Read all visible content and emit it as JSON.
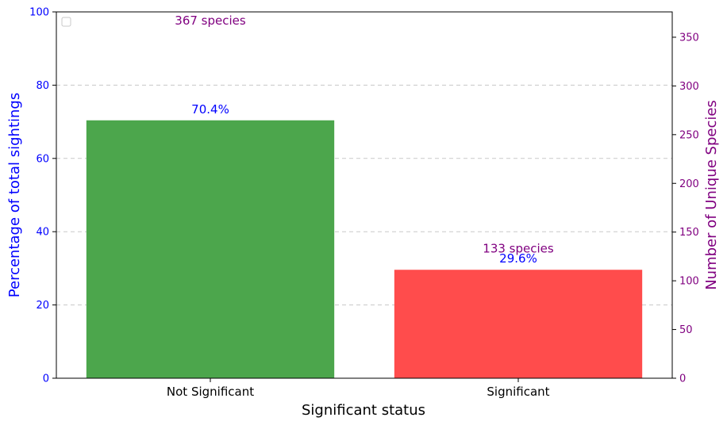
{
  "chart_data": {
    "type": "bar",
    "categories": [
      "Not Significant",
      "Significant"
    ],
    "values": [
      70.4,
      29.6
    ],
    "value_labels": [
      "70.4%",
      "29.6%"
    ],
    "species_counts": [
      367,
      133
    ],
    "species_labels": [
      "367 species",
      "133 species"
    ],
    "xlabel": "Significant status",
    "ylabel": "Percentage of total sightings",
    "ylabel_right": "Number of Unique Species",
    "ylim": [
      0,
      100
    ],
    "ylim_right": [
      0,
      376
    ],
    "yticks": [
      0,
      20,
      40,
      60,
      80,
      100
    ],
    "yticks_right": [
      0,
      50,
      100,
      150,
      200,
      250,
      300,
      350
    ],
    "grid": "horizontal dashed",
    "legend": "top-left (empty)",
    "colors": {
      "bars": [
        "#4ca64c",
        "#ff4c4c"
      ],
      "left_axis": "#0000ff",
      "right_axis": "#800080",
      "grid": "#c8c8c8"
    }
  }
}
